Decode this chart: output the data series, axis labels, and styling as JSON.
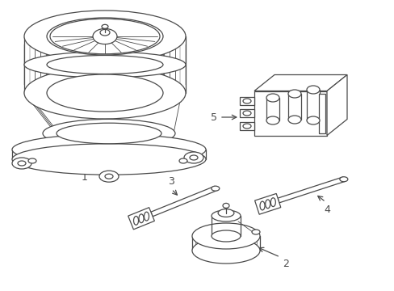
{
  "bg_color": "#ffffff",
  "line_color": "#4a4a4a",
  "label_color": "#000000",
  "fig_width": 4.89,
  "fig_height": 3.6,
  "dpi": 100
}
